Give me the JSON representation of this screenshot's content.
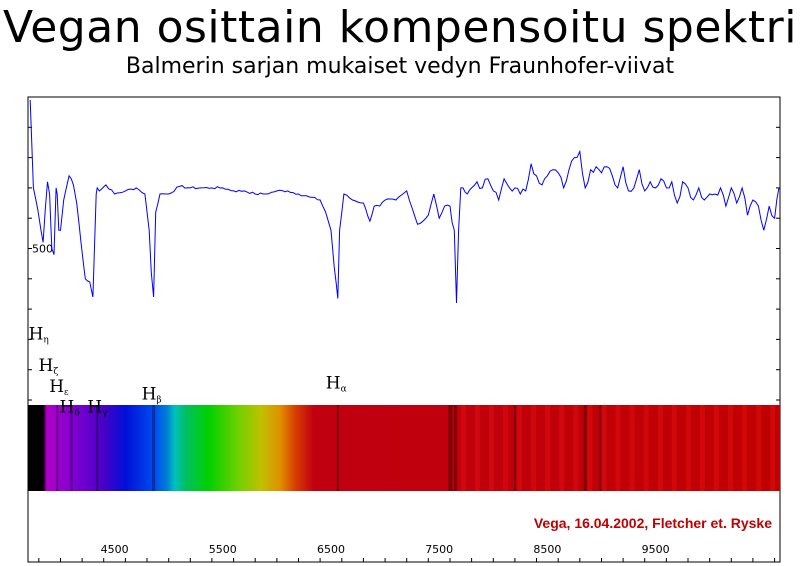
{
  "chart_data": {
    "type": "line",
    "title": "Vegan osittain kompensoitu spektri",
    "subtitle": "Balmerin sarjan mukaiset vedyn Fraunhofer-viivat",
    "xlim": [
      3700,
      10650
    ],
    "ylim": [
      0,
      1000
    ],
    "x_ticks": [
      4500,
      5500,
      6500,
      7500,
      8500,
      9500
    ],
    "y_tick_labels": [
      {
        "value": 500,
        "label": "500"
      }
    ],
    "series": [
      {
        "x": [
          3720,
          3750,
          3790,
          3820,
          3840,
          3860,
          3880,
          3900,
          3920,
          3940,
          3960,
          3970,
          3985,
          4000,
          4030,
          4060,
          4080,
          4100,
          4120,
          4150,
          4190,
          4230,
          4270,
          4300,
          4330,
          4340,
          4360,
          4420,
          4500,
          4600,
          4700,
          4780,
          4820,
          4840,
          4861,
          4880,
          4920,
          5000,
          5100,
          5200,
          5300,
          5400,
          5500,
          5600,
          5700,
          5800,
          5900,
          6000,
          6100,
          6200,
          6300,
          6400,
          6450,
          6500,
          6530,
          6550,
          6563,
          6580,
          6620,
          6700,
          6800,
          6860,
          6900,
          6950,
          7000,
          7100,
          7200,
          7300,
          7350,
          7400,
          7450,
          7500,
          7550,
          7600,
          7640,
          7660,
          7680,
          7700,
          7720,
          7760,
          7800,
          7850,
          7900,
          7950,
          8000,
          8050,
          8100,
          8150,
          8200,
          8250,
          8300,
          8350,
          8400,
          8450,
          8500,
          8550,
          8600,
          8650,
          8700,
          8750,
          8800,
          8850,
          8900,
          8950,
          9000,
          9050,
          9100,
          9150,
          9200,
          9250,
          9300,
          9350,
          9400,
          9450,
          9500,
          9550,
          9600,
          9650,
          9700,
          9750,
          9800,
          9850,
          9900,
          9950,
          10000,
          10050,
          10100,
          10150,
          10200,
          10250,
          10300,
          10350,
          10400,
          10450,
          10500,
          10550,
          10600,
          10640
        ],
        "y": [
          990,
          700,
          630,
          560,
          520,
          630,
          720,
          680,
          500,
          480,
          700,
          680,
          560,
          560,
          660,
          710,
          740,
          730,
          710,
          650,
          520,
          400,
          390,
          340,
          680,
          700,
          690,
          710,
          680,
          690,
          700,
          680,
          560,
          420,
          340,
          620,
          680,
          680,
          705,
          700,
          700,
          700,
          700,
          690,
          690,
          680,
          680,
          690,
          690,
          680,
          670,
          660,
          620,
          560,
          440,
          380,
          335,
          560,
          680,
          660,
          650,
          590,
          640,
          640,
          660,
          660,
          690,
          580,
          590,
          610,
          680,
          600,
          640,
          640,
          560,
          320,
          560,
          700,
          700,
          680,
          700,
          720,
          700,
          730,
          690,
          660,
          730,
          700,
          700,
          680,
          690,
          780,
          740,
          710,
          740,
          760,
          750,
          700,
          760,
          800,
          820,
          700,
          760,
          770,
          750,
          770,
          740,
          700,
          770,
          690,
          700,
          760,
          690,
          720,
          700,
          730,
          700,
          720,
          650,
          720,
          700,
          660,
          700,
          660,
          680,
          680,
          700,
          640,
          700,
          650,
          700,
          610,
          660,
          640,
          560,
          640,
          600,
          700
        ]
      }
    ],
    "line_labels": [
      {
        "wavelength": 3835,
        "y": 0.735,
        "main": "H",
        "sub": "η"
      },
      {
        "wavelength": 3889,
        "y": 0.832,
        "main": "H",
        "sub": "ζ"
      },
      {
        "wavelength": 3970,
        "y": 0.947,
        "main": "H",
        "sub": "ε"
      },
      {
        "wavelength": 4102,
        "y": 0.982,
        "main": "H",
        "sub": "δ"
      },
      {
        "wavelength": 4340,
        "y": 0.982,
        "main": "H",
        "sub": "γ"
      },
      {
        "wavelength": 4861,
        "y": 0.965,
        "main": "H",
        "sub": "β"
      },
      {
        "wavelength": 6563,
        "y": 0.955,
        "main": "H",
        "sub": "α"
      }
    ],
    "credit": "Vega, 16.04.2002, Fletcher et. Ryske",
    "line_color": "#0000ff",
    "credit_color": "#c00000"
  }
}
